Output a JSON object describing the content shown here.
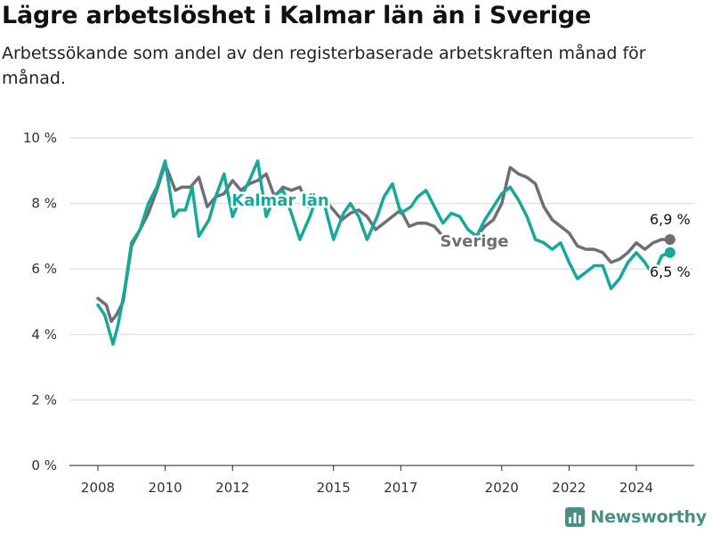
{
  "title": "Lägre arbetslöshet i Kalmar län än i Sverige",
  "subtitle": "Arbetssökande som andel av den registerbaserade arbetskraften månad för månad.",
  "brand": {
    "name": "Newsworthy",
    "color": "#4a8f86",
    "icon": "bar-chart-logo-icon"
  },
  "chart_data": {
    "type": "line",
    "title": "Lägre arbetslöshet i Kalmar län än i Sverige",
    "subtitle": "Arbetssökande som andel av den registerbaserade arbetskraften månad för månad.",
    "xlabel": "",
    "ylabel": "",
    "xlim": [
      2007.5,
      2025.5
    ],
    "ylim": [
      0,
      10
    ],
    "grid": true,
    "yticks": [
      0,
      2,
      4,
      6,
      8,
      10
    ],
    "ytick_labels": [
      "0 %",
      "2 %",
      "4 %",
      "6 %",
      "8 %",
      "10 %"
    ],
    "xticks": [
      2008,
      2010,
      2012,
      2015,
      2017,
      2020,
      2022,
      2024
    ],
    "xtick_labels": [
      "2008",
      "2010",
      "2012",
      "2015",
      "2017",
      "2020",
      "2022",
      "2024"
    ],
    "end_labels": {
      "Sverige": "6,9 %",
      "Kalmar län": "6,5 %"
    },
    "series": [
      {
        "name": "Sverige",
        "color": "#6e6e74",
        "x": [
          2008.0,
          2008.25,
          2008.4,
          2008.55,
          2008.75,
          2009.0,
          2009.25,
          2009.5,
          2009.75,
          2010.0,
          2010.3,
          2010.5,
          2010.75,
          2011.0,
          2011.25,
          2011.5,
          2011.75,
          2012.0,
          2012.25,
          2012.5,
          2012.75,
          2013.0,
          2013.25,
          2013.5,
          2013.75,
          2014.0,
          2014.25,
          2014.5,
          2014.75,
          2015.0,
          2015.25,
          2015.5,
          2015.75,
          2016.0,
          2016.25,
          2016.5,
          2016.75,
          2017.0,
          2017.25,
          2017.5,
          2017.75,
          2018.0,
          2018.25,
          2018.5,
          2018.75,
          2019.0,
          2019.25,
          2019.5,
          2019.75,
          2020.0,
          2020.25,
          2020.5,
          2020.75,
          2021.0,
          2021.25,
          2021.5,
          2021.75,
          2022.0,
          2022.25,
          2022.5,
          2022.75,
          2023.0,
          2023.25,
          2023.5,
          2023.75,
          2024.0,
          2024.25,
          2024.5,
          2024.75,
          2025.0
        ],
        "y": [
          5.1,
          4.9,
          4.4,
          4.6,
          5.0,
          6.7,
          7.2,
          7.7,
          8.4,
          9.2,
          8.4,
          8.5,
          8.5,
          8.8,
          7.9,
          8.2,
          8.3,
          8.7,
          8.4,
          8.6,
          8.7,
          8.9,
          8.2,
          8.5,
          8.4,
          8.5,
          7.9,
          8.0,
          8.1,
          7.8,
          7.5,
          7.7,
          7.8,
          7.6,
          7.2,
          7.4,
          7.6,
          7.8,
          7.3,
          7.4,
          7.4,
          7.3,
          7.0,
          6.9,
          6.8,
          6.7,
          7.0,
          7.3,
          7.5,
          8.0,
          9.1,
          8.9,
          8.8,
          8.6,
          7.9,
          7.5,
          7.3,
          7.1,
          6.7,
          6.6,
          6.6,
          6.5,
          6.2,
          6.3,
          6.5,
          6.8,
          6.6,
          6.8,
          6.9,
          6.9
        ]
      },
      {
        "name": "Kalmar län",
        "color": "#16a99b",
        "x": [
          2008.0,
          2008.2,
          2008.45,
          2008.6,
          2008.8,
          2009.0,
          2009.25,
          2009.5,
          2009.75,
          2010.0,
          2010.25,
          2010.4,
          2010.6,
          2010.8,
          2011.0,
          2011.3,
          2011.5,
          2011.75,
          2012.0,
          2012.3,
          2012.5,
          2012.75,
          2013.0,
          2013.3,
          2013.5,
          2013.75,
          2014.0,
          2014.3,
          2014.5,
          2014.75,
          2015.0,
          2015.3,
          2015.5,
          2015.75,
          2016.0,
          2016.3,
          2016.5,
          2016.75,
          2017.0,
          2017.3,
          2017.5,
          2017.75,
          2018.0,
          2018.25,
          2018.5,
          2018.75,
          2019.0,
          2019.25,
          2019.5,
          2019.75,
          2020.0,
          2020.25,
          2020.5,
          2020.75,
          2021.0,
          2021.25,
          2021.5,
          2021.75,
          2022.0,
          2022.25,
          2022.5,
          2022.75,
          2023.0,
          2023.25,
          2023.5,
          2023.75,
          2024.0,
          2024.25,
          2024.5,
          2024.75,
          2025.0
        ],
        "y": [
          4.9,
          4.6,
          3.7,
          4.3,
          5.4,
          6.8,
          7.2,
          8.0,
          8.5,
          9.3,
          7.6,
          7.8,
          7.8,
          8.5,
          7.0,
          7.5,
          8.2,
          8.9,
          7.6,
          8.3,
          8.7,
          9.3,
          7.6,
          8.3,
          8.4,
          7.7,
          6.9,
          7.6,
          8.2,
          7.9,
          6.9,
          7.7,
          8.0,
          7.6,
          6.9,
          7.6,
          8.2,
          8.6,
          7.7,
          7.9,
          8.2,
          8.4,
          7.9,
          7.4,
          7.7,
          7.6,
          7.2,
          7.0,
          7.5,
          7.9,
          8.3,
          8.5,
          8.1,
          7.6,
          6.9,
          6.8,
          6.6,
          6.8,
          6.2,
          5.7,
          5.9,
          6.1,
          6.1,
          5.4,
          5.7,
          6.2,
          6.5,
          6.2,
          5.8,
          6.4,
          6.5
        ]
      }
    ]
  }
}
